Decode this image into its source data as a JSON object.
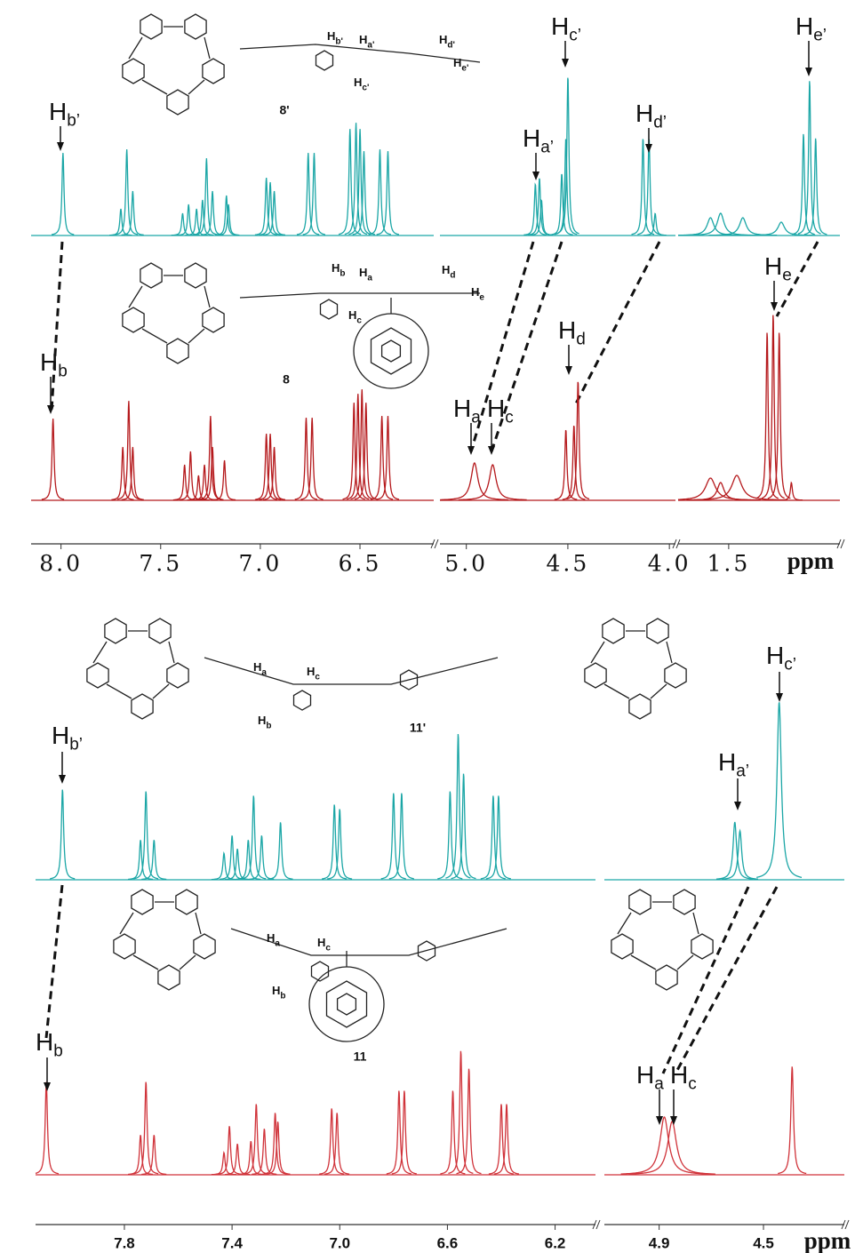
{
  "panels": [
    {
      "axis": {
        "unit": "ppm",
        "segments": [
          {
            "xlim": [
              8.15,
              6.13
            ],
            "ticks": [
              {
                "value": 8,
                "label": "8.0"
              },
              {
                "value": 7.5,
                "label": "7.5"
              },
              {
                "value": 7,
                "label": "7.0"
              },
              {
                "value": 6.5,
                "label": "6.5"
              }
            ]
          },
          {
            "xlim": [
              5.13,
              3.97
            ],
            "ticks": [
              {
                "value": 5,
                "label": "5.0"
              },
              {
                "value": 4.5,
                "label": "4.5"
              },
              {
                "value": 4,
                "label": "4.0"
              }
            ]
          },
          {
            "xlim": [
              1.75,
              0.95
            ],
            "ticks": [
              1.5
            ]
          }
        ]
      },
      "intensity_max": 200,
      "spectra": [
        {
          "color": "#1ba6a6",
          "segments": [
            {
              "peaks": [
                [
                  7.99,
                  93,
                  0.006
                ],
                [
                  7.7,
                  30,
                  0.006
                ],
                [
                  7.67,
                  97,
                  0.006
                ],
                [
                  7.64,
                  50,
                  0.006
                ],
                [
                  7.39,
                  25,
                  0.006
                ],
                [
                  7.36,
                  35,
                  0.006
                ],
                [
                  7.32,
                  30,
                  0.006
                ],
                [
                  7.29,
                  40,
                  0.006
                ],
                [
                  7.27,
                  87,
                  0.006
                ],
                [
                  7.24,
                  50,
                  0.006
                ],
                [
                  7.17,
                  45,
                  0.006
                ],
                [
                  7.16,
                  35,
                  0.006
                ],
                [
                  6.97,
                  65,
                  0.006
                ],
                [
                  6.95,
                  60,
                  0.006
                ],
                [
                  6.93,
                  50,
                  0.006
                ],
                [
                  6.76,
                  93,
                  0.006
                ],
                [
                  6.73,
                  93,
                  0.006
                ],
                [
                  6.55,
                  120,
                  0.006
                ],
                [
                  6.52,
                  127,
                  0.006
                ],
                [
                  6.5,
                  120,
                  0.006
                ],
                [
                  6.48,
                  95,
                  0.006
                ],
                [
                  6.4,
                  97,
                  0.006
                ],
                [
                  6.36,
                  95,
                  0.006
                ]
              ]
            },
            {
              "peaks": [
                [
                  4.66,
                  58,
                  0.006
                ],
                [
                  4.64,
                  65,
                  0.006
                ],
                [
                  4.63,
                  40,
                  0.006
                ],
                [
                  4.53,
                  70,
                  0.006
                ],
                [
                  4.51,
                  110,
                  0.006
                ],
                [
                  4.5,
                  180,
                  0.006
                ],
                [
                  4.13,
                  110,
                  0.006
                ],
                [
                  4.1,
                  110,
                  0.006
                ],
                [
                  4.07,
                  25,
                  0.006
                ]
              ]
            },
            {
              "peaks": [
                [
                  1.59,
                  20,
                  0.02
                ],
                [
                  1.54,
                  25,
                  0.02
                ],
                [
                  1.43,
                  20,
                  0.02
                ],
                [
                  1.24,
                  15,
                  0.02
                ],
                [
                  1.13,
                  115,
                  0.006
                ],
                [
                  1.1,
                  175,
                  0.006
                ],
                [
                  1.07,
                  110,
                  0.006
                ]
              ]
            }
          ]
        },
        {
          "color": "#b5191c",
          "segments": [
            {
              "peaks": [
                [
                  8.04,
                  92,
                  0.006
                ],
                [
                  7.69,
                  60,
                  0.006
                ],
                [
                  7.66,
                  112,
                  0.006
                ],
                [
                  7.64,
                  60,
                  0.006
                ],
                [
                  7.38,
                  40,
                  0.006
                ],
                [
                  7.35,
                  55,
                  0.006
                ],
                [
                  7.31,
                  28,
                  0.006
                ],
                [
                  7.28,
                  40,
                  0.006
                ],
                [
                  7.25,
                  95,
                  0.006
                ],
                [
                  7.24,
                  60,
                  0.006
                ],
                [
                  7.18,
                  45,
                  0.006
                ],
                [
                  6.97,
                  75,
                  0.006
                ],
                [
                  6.95,
                  75,
                  0.006
                ],
                [
                  6.93,
                  60,
                  0.006
                ],
                [
                  6.77,
                  93,
                  0.006
                ],
                [
                  6.74,
                  93,
                  0.006
                ],
                [
                  6.53,
                  110,
                  0.006
                ],
                [
                  6.51,
                  120,
                  0.006
                ],
                [
                  6.49,
                  125,
                  0.006
                ],
                [
                  6.47,
                  110,
                  0.006
                ],
                [
                  6.39,
                  95,
                  0.006
                ],
                [
                  6.36,
                  95,
                  0.006
                ]
              ]
            },
            {
              "peaks": [
                [
                  4.96,
                  42,
                  0.02
                ],
                [
                  4.87,
                  40,
                  0.02
                ],
                [
                  4.51,
                  80,
                  0.006
                ],
                [
                  4.47,
                  85,
                  0.006
                ],
                [
                  4.45,
                  135,
                  0.006
                ]
              ]
            },
            {
              "peaks": [
                [
                  1.59,
                  25,
                  0.03
                ],
                [
                  1.54,
                  20,
                  0.02
                ],
                [
                  1.46,
                  28,
                  0.03
                ],
                [
                  1.31,
                  190,
                  0.006
                ],
                [
                  1.28,
                  210,
                  0.006
                ],
                [
                  1.25,
                  190,
                  0.006
                ],
                [
                  1.19,
                  20,
                  0.006
                ]
              ]
            }
          ]
        }
      ],
      "peak_labels": [
        {
          "base": "H",
          "sub": "b’"
        },
        {
          "base": "H",
          "sub": "a’"
        },
        {
          "base": "H",
          "sub": "c’"
        },
        {
          "base": "H",
          "sub": "d’"
        },
        {
          "base": "H",
          "sub": "e’"
        },
        {
          "base": "H",
          "sub": "b"
        },
        {
          "base": "H",
          "sub": "a"
        },
        {
          "base": "H",
          "sub": "c"
        },
        {
          "base": "H",
          "sub": "d"
        },
        {
          "base": "H",
          "sub": "e"
        }
      ],
      "compounds": [
        {
          "label": "8'",
          "atoms": [
            {
              "base": "H",
              "sub": "b'"
            },
            {
              "base": "H",
              "sub": "a'"
            },
            {
              "base": "H",
              "sub": "d'"
            },
            {
              "base": "H",
              "sub": "e'"
            },
            {
              "base": "H",
              "sub": "c'"
            }
          ]
        },
        {
          "label": "8",
          "atoms": [
            {
              "base": "H",
              "sub": "b"
            },
            {
              "base": "H",
              "sub": "a"
            },
            {
              "base": "H",
              "sub": "d"
            },
            {
              "base": "H",
              "sub": "e"
            },
            {
              "base": "H",
              "sub": "c"
            }
          ]
        }
      ]
    },
    {
      "axis": {
        "unit": "ppm",
        "segments": [
          {
            "xlim": [
              8.13,
              6.05
            ],
            "ticks": [
              7.8,
              7.4,
              {
                "value": 7,
                "label": "7.0"
              },
              6.6,
              6.2
            ]
          },
          {
            "xlim": [
              5.11,
              4.19
            ],
            "ticks": [
              4.9,
              4.5
            ]
          }
        ]
      },
      "intensity_max": 200,
      "spectra": [
        {
          "color": "#1ba6a6",
          "segments": [
            {
              "peaks": [
                [
                  8.03,
                  102,
                  0.005
                ],
                [
                  7.74,
                  45,
                  0.005
                ],
                [
                  7.72,
                  100,
                  0.005
                ],
                [
                  7.69,
                  45,
                  0.005
                ],
                [
                  7.43,
                  30,
                  0.005
                ],
                [
                  7.4,
                  50,
                  0.005
                ],
                [
                  7.38,
                  35,
                  0.005
                ],
                [
                  7.34,
                  45,
                  0.005
                ],
                [
                  7.32,
                  95,
                  0.005
                ],
                [
                  7.29,
                  50,
                  0.005
                ],
                [
                  7.22,
                  65,
                  0.005
                ],
                [
                  7.02,
                  85,
                  0.005
                ],
                [
                  7.0,
                  80,
                  0.005
                ],
                [
                  6.8,
                  98,
                  0.005
                ],
                [
                  6.77,
                  98,
                  0.005
                ],
                [
                  6.59,
                  100,
                  0.005
                ],
                [
                  6.56,
                  165,
                  0.005
                ],
                [
                  6.54,
                  120,
                  0.005
                ],
                [
                  6.43,
                  95,
                  0.005
                ],
                [
                  6.41,
                  95,
                  0.005
                ]
              ]
            },
            {
              "peaks": [
                [
                  4.61,
                  65,
                  0.008
                ],
                [
                  4.59,
                  55,
                  0.008
                ],
                [
                  4.44,
                  200,
                  0.01
                ]
              ]
            }
          ]
        },
        {
          "color": "#d0333a",
          "segments": [
            {
              "peaks": [
                [
                  8.09,
                  105,
                  0.005
                ],
                [
                  7.74,
                  45,
                  0.005
                ],
                [
                  7.72,
                  105,
                  0.005
                ],
                [
                  7.69,
                  45,
                  0.005
                ],
                [
                  7.43,
                  25,
                  0.005
                ],
                [
                  7.41,
                  55,
                  0.005
                ],
                [
                  7.38,
                  35,
                  0.005
                ],
                [
                  7.33,
                  38,
                  0.005
                ],
                [
                  7.31,
                  80,
                  0.005
                ],
                [
                  7.28,
                  52,
                  0.005
                ],
                [
                  7.24,
                  70,
                  0.005
                ],
                [
                  7.23,
                  60,
                  0.005
                ],
                [
                  7.03,
                  75,
                  0.005
                ],
                [
                  7.01,
                  70,
                  0.005
                ],
                [
                  6.78,
                  95,
                  0.005
                ],
                [
                  6.76,
                  95,
                  0.005
                ],
                [
                  6.58,
                  95,
                  0.005
                ],
                [
                  6.55,
                  140,
                  0.005
                ],
                [
                  6.52,
                  120,
                  0.005
                ],
                [
                  6.4,
                  80,
                  0.005
                ],
                [
                  6.38,
                  80,
                  0.005
                ]
              ]
            },
            {
              "peaks": [
                [
                  4.88,
                  65,
                  0.02
                ],
                [
                  4.85,
                  60,
                  0.02
                ],
                [
                  4.39,
                  122,
                  0.006
                ]
              ]
            }
          ]
        }
      ],
      "peak_labels": [
        {
          "base": "H",
          "sub": "b’"
        },
        {
          "base": "H",
          "sub": "a’"
        },
        {
          "base": "H",
          "sub": "c’"
        },
        {
          "base": "H",
          "sub": "b"
        },
        {
          "base": "H",
          "sub": "a"
        },
        {
          "base": "H",
          "sub": "c"
        }
      ],
      "compounds": [
        {
          "label": "11'",
          "atoms": [
            {
              "base": "H",
              "sub": "a"
            },
            {
              "base": "H",
              "sub": "c"
            },
            {
              "base": "H",
              "sub": "b"
            }
          ]
        },
        {
          "label": "11",
          "atoms": [
            {
              "base": "H",
              "sub": "a"
            },
            {
              "base": "H",
              "sub": "c"
            },
            {
              "base": "H",
              "sub": "b"
            }
          ]
        }
      ]
    }
  ]
}
